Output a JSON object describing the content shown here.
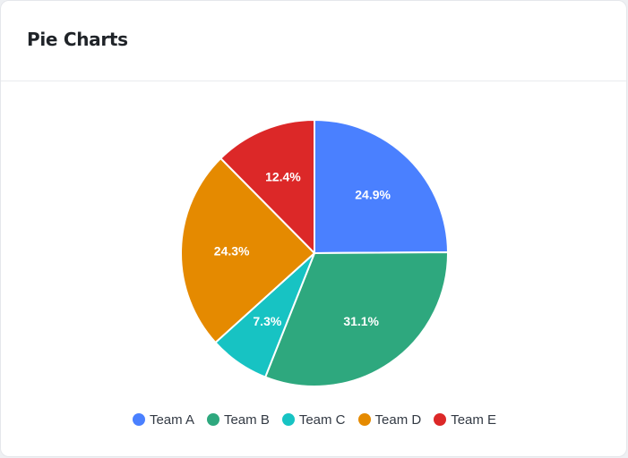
{
  "header": {
    "title": "Pie Charts"
  },
  "chart_data": {
    "type": "pie",
    "start_angle_deg": 0,
    "direction": "clockwise",
    "legend_position": "bottom",
    "slices": [
      {
        "name": "Team A",
        "value": 24.9,
        "label": "24.9%",
        "color": "#4a80ff"
      },
      {
        "name": "Team B",
        "value": 31.1,
        "label": "31.1%",
        "color": "#2ea87e"
      },
      {
        "name": "Team C",
        "value": 7.3,
        "label": "7.3%",
        "color": "#17c3c3"
      },
      {
        "name": "Team D",
        "value": 24.3,
        "label": "24.3%",
        "color": "#e58a00"
      },
      {
        "name": "Team E",
        "value": 12.4,
        "label": "12.4%",
        "color": "#dc2828"
      }
    ]
  }
}
